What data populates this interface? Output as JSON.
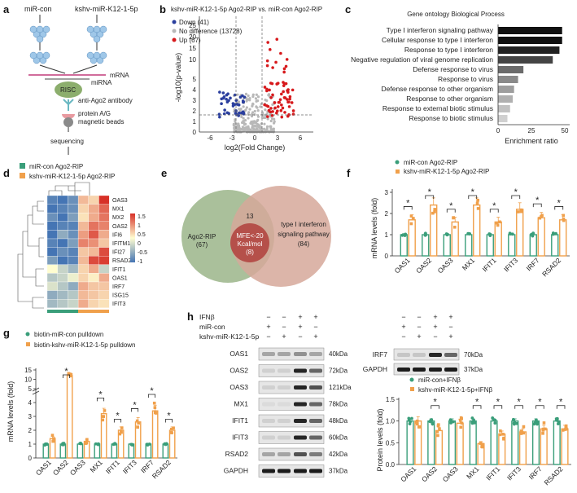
{
  "panel_labels": {
    "a": "a",
    "b": "b",
    "c": "c",
    "d": "d",
    "e": "e",
    "f": "f",
    "g": "g",
    "h": "h"
  },
  "a": {
    "mircon": "miR-con",
    "kshv": "kshv-miR-K12-1-5p",
    "mrna": "mRNA",
    "mirna": "miRNA",
    "risc": "RISC",
    "antibody": "anti-Ago2 antibody",
    "beads1": "protein A/G",
    "beads2": "magnetic beads",
    "seq": "sequencing"
  },
  "colors": {
    "green": "#3a9e7a",
    "orange": "#f0a04b",
    "up": "#d7191c",
    "down": "#2b3f9e",
    "nodiff": "#b8b8b8",
    "bar_dark": "#111111",
    "bar_light": "#d0d0d0",
    "hm_high": "#d73027",
    "hm_low": "#4575b4",
    "venn_green": "#9bb58a",
    "venn_tan": "#d6a89a",
    "venn_center": "#b5504a"
  },
  "chart_data": [
    {
      "id": "b",
      "type": "scatter",
      "title": "kshv-miR-K12-1-5p Ago2-RIP vs. miR-con Ago2-RIP",
      "xlabel": "log2(Fold Change)",
      "ylabel": "-log10(p-value)",
      "xticks": [
        "-6",
        "-3",
        "0",
        "3",
        "6"
      ],
      "yticks": [
        "0",
        "1",
        "2",
        "3",
        "4",
        "5",
        "10",
        "15",
        "20",
        "25"
      ],
      "legend": [
        {
          "name": "Down",
          "count": "(41)",
          "label": "Down (41)"
        },
        {
          "name": "No difference",
          "count": "(13728)",
          "label": "No difference (13728)"
        },
        {
          "name": "Up",
          "count": "(67)",
          "label": "Up (67)"
        }
      ],
      "counts": {
        "down": 41,
        "nodiff": 13728,
        "up": 67
      }
    },
    {
      "id": "c",
      "type": "bar",
      "orientation": "horizontal",
      "title": "Gene ontology Biological Process",
      "xlabel": "Enrichment ratio",
      "xticks": [
        "0",
        "25",
        "50"
      ],
      "xlim": [
        0,
        50
      ],
      "categories": [
        "Type I interferon signaling pathway",
        "Cellular response to type I interferon",
        "Response to type I interferon",
        "Negative regulation of viral genome replication",
        "Defense response to virus",
        "Response to virus",
        "Defense response to other organism",
        "Response to other organism",
        "Response to external biotic stimulus",
        "Response to biotic stimulus"
      ],
      "values": [
        48,
        48,
        46,
        41,
        19,
        15,
        12,
        11,
        9,
        7
      ]
    },
    {
      "id": "d",
      "type": "heatmap",
      "legend": [
        "miR-con Ago2-RIP",
        "kshv-miR-K12-1-5p Ago2-RIP"
      ],
      "genes": [
        "OAS3",
        "MX1",
        "MX2",
        "OAS2",
        "IFI6",
        "IFITM1",
        "IFI27",
        "RSAD2",
        "IFIT1",
        "OAS1",
        "IRF7",
        "ISG15",
        "IFIT3"
      ],
      "scale_ticks": [
        "1.5",
        "1",
        "0.5",
        "0",
        "-0.5",
        "-1"
      ],
      "values": [
        [
          -0.9,
          -1.0,
          -0.8,
          0.5,
          0.3,
          1.5
        ],
        [
          -1.0,
          -0.9,
          -0.8,
          0.3,
          0.6,
          1.1
        ],
        [
          -0.8,
          -1.0,
          -0.7,
          0.2,
          0.6,
          1.0
        ],
        [
          -1.0,
          -0.9,
          -0.9,
          0.5,
          1.0,
          0.9
        ],
        [
          -1.0,
          -0.6,
          -0.8,
          0.7,
          1.2,
          0.6
        ],
        [
          -0.9,
          -1.0,
          -0.7,
          0.9,
          0.8,
          0.4
        ],
        [
          -1.0,
          -0.8,
          -0.9,
          0.4,
          0.5,
          1.3
        ],
        [
          -0.7,
          -1.0,
          -0.9,
          0.5,
          1.3,
          1.4
        ],
        [
          0.0,
          -0.3,
          -0.5,
          0.3,
          0.6,
          -0.3
        ],
        [
          -0.4,
          -0.3,
          -0.1,
          0.3,
          0.1,
          0.6
        ],
        [
          -0.2,
          -0.4,
          -0.6,
          0.6,
          0.4,
          0.4
        ],
        [
          -0.6,
          -0.5,
          -0.4,
          0.5,
          0.4,
          0.3
        ],
        [
          -0.5,
          -0.4,
          -0.3,
          0.6,
          0.3,
          0.2
        ]
      ]
    },
    {
      "id": "e",
      "type": "venn",
      "left": {
        "name": "Ago2-RIP",
        "count": "(67)"
      },
      "right": {
        "name": "type I interferon signaling pathway",
        "count": "(84)"
      },
      "overlap": "13",
      "center": {
        "line1": "MFE<-20",
        "line2": "Kcal/mol",
        "count": "(8)"
      }
    },
    {
      "id": "f",
      "type": "bar",
      "ylabel": "mRNA levels (fold)",
      "ylim": [
        0,
        3
      ],
      "yticks": [
        "0",
        "1",
        "2",
        "3"
      ],
      "legend": [
        "miR-con Ago2-RIP",
        "kshv-miR-K12-1-5p Ago2-RIP"
      ],
      "categories": [
        "OAS1",
        "OAS2",
        "OAS3",
        "MX1",
        "IFIT1",
        "IFIT3",
        "IRF7",
        "RSAD2"
      ],
      "series": [
        {
          "name": "miR-con Ago2-RIP",
          "values": [
            1,
            1,
            1,
            1,
            1,
            1,
            1,
            1
          ]
        },
        {
          "name": "kshv-miR-K12-1-5p Ago2-RIP",
          "values": [
            1.7,
            2.4,
            1.6,
            2.4,
            1.6,
            2.2,
            1.8,
            1.7
          ]
        }
      ],
      "significance": "*"
    },
    {
      "id": "g",
      "type": "bar",
      "ylabel": "mRNA levels (fold)",
      "yticks_low": [
        "0",
        "1",
        "2",
        "3",
        "4",
        "5"
      ],
      "yticks_high": [
        "10",
        "15"
      ],
      "legend": [
        "biotin-miR-con pulldown",
        "biotin-kshv-miR-K12-1-5p pulldown"
      ],
      "categories": [
        "OAS1",
        "OAS2",
        "OAS3",
        "MX1",
        "IFIT1",
        "IFIT3",
        "IRF7",
        "RSAD2"
      ],
      "series": [
        {
          "name": "biotin-miR-con pulldown",
          "values": [
            1,
            1,
            1,
            1,
            1,
            1,
            1,
            1
          ]
        },
        {
          "name": "biotin-kshv-miR-K12-1-5p pulldown",
          "values": [
            1.4,
            12,
            1.2,
            3.2,
            2,
            2.6,
            3.4,
            2
          ]
        }
      ],
      "significance": "*",
      "sig_at": [
        "OAS2",
        "MX1",
        "IFIT1",
        "IFIT3",
        "IRF7",
        "RSAD2"
      ]
    },
    {
      "id": "h",
      "type": "bar",
      "ylabel": "Protein levels (fold)",
      "ylim": [
        0,
        1.5
      ],
      "yticks": [
        "0.0",
        "0.5",
        "1.0",
        "1.5"
      ],
      "legend": [
        "miR-con+IFNβ",
        "kshv-miR-K12-1-5p+IFNβ"
      ],
      "categories": [
        "OAS1",
        "OAS2",
        "OAS3",
        "MX1",
        "IFIT1",
        "IFIT3",
        "IRF7",
        "RSAD2"
      ],
      "series": [
        {
          "name": "miR-con+IFNβ",
          "values": [
            1,
            1,
            1,
            1,
            1,
            1,
            1,
            1
          ]
        },
        {
          "name": "kshv-miR-K12-1-5p+IFNβ",
          "values": [
            1.0,
            0.78,
            0.95,
            0.48,
            0.7,
            0.75,
            0.82,
            0.82
          ]
        }
      ],
      "significance": "*",
      "sig_at": [
        "OAS2",
        "MX1",
        "IFIT1",
        "IFIT3",
        "IRF7",
        "RSAD2"
      ]
    }
  ],
  "h_blot": {
    "rows": [
      "IFNβ",
      "miR-con",
      "kshv-miR-K12-1-5p"
    ],
    "signs": [
      [
        "−",
        "−",
        "+",
        "+"
      ],
      [
        "+",
        "−",
        "+",
        "−"
      ],
      [
        "−",
        "+",
        "−",
        "+"
      ]
    ],
    "proteins": [
      "OAS1",
      "OAS2",
      "OAS3",
      "MX1",
      "IFIT1",
      "IFIT3",
      "RSAD2",
      "GAPDH"
    ],
    "sizes": [
      "40kDa",
      "72kDa",
      "121kDa",
      "78kDa",
      "48kDa",
      "60kDa",
      "42kDa",
      "37kDa"
    ],
    "right_proteins": [
      "IRF7",
      "GAPDH"
    ],
    "right_sizes": [
      "70kDa",
      "37kDa"
    ]
  }
}
